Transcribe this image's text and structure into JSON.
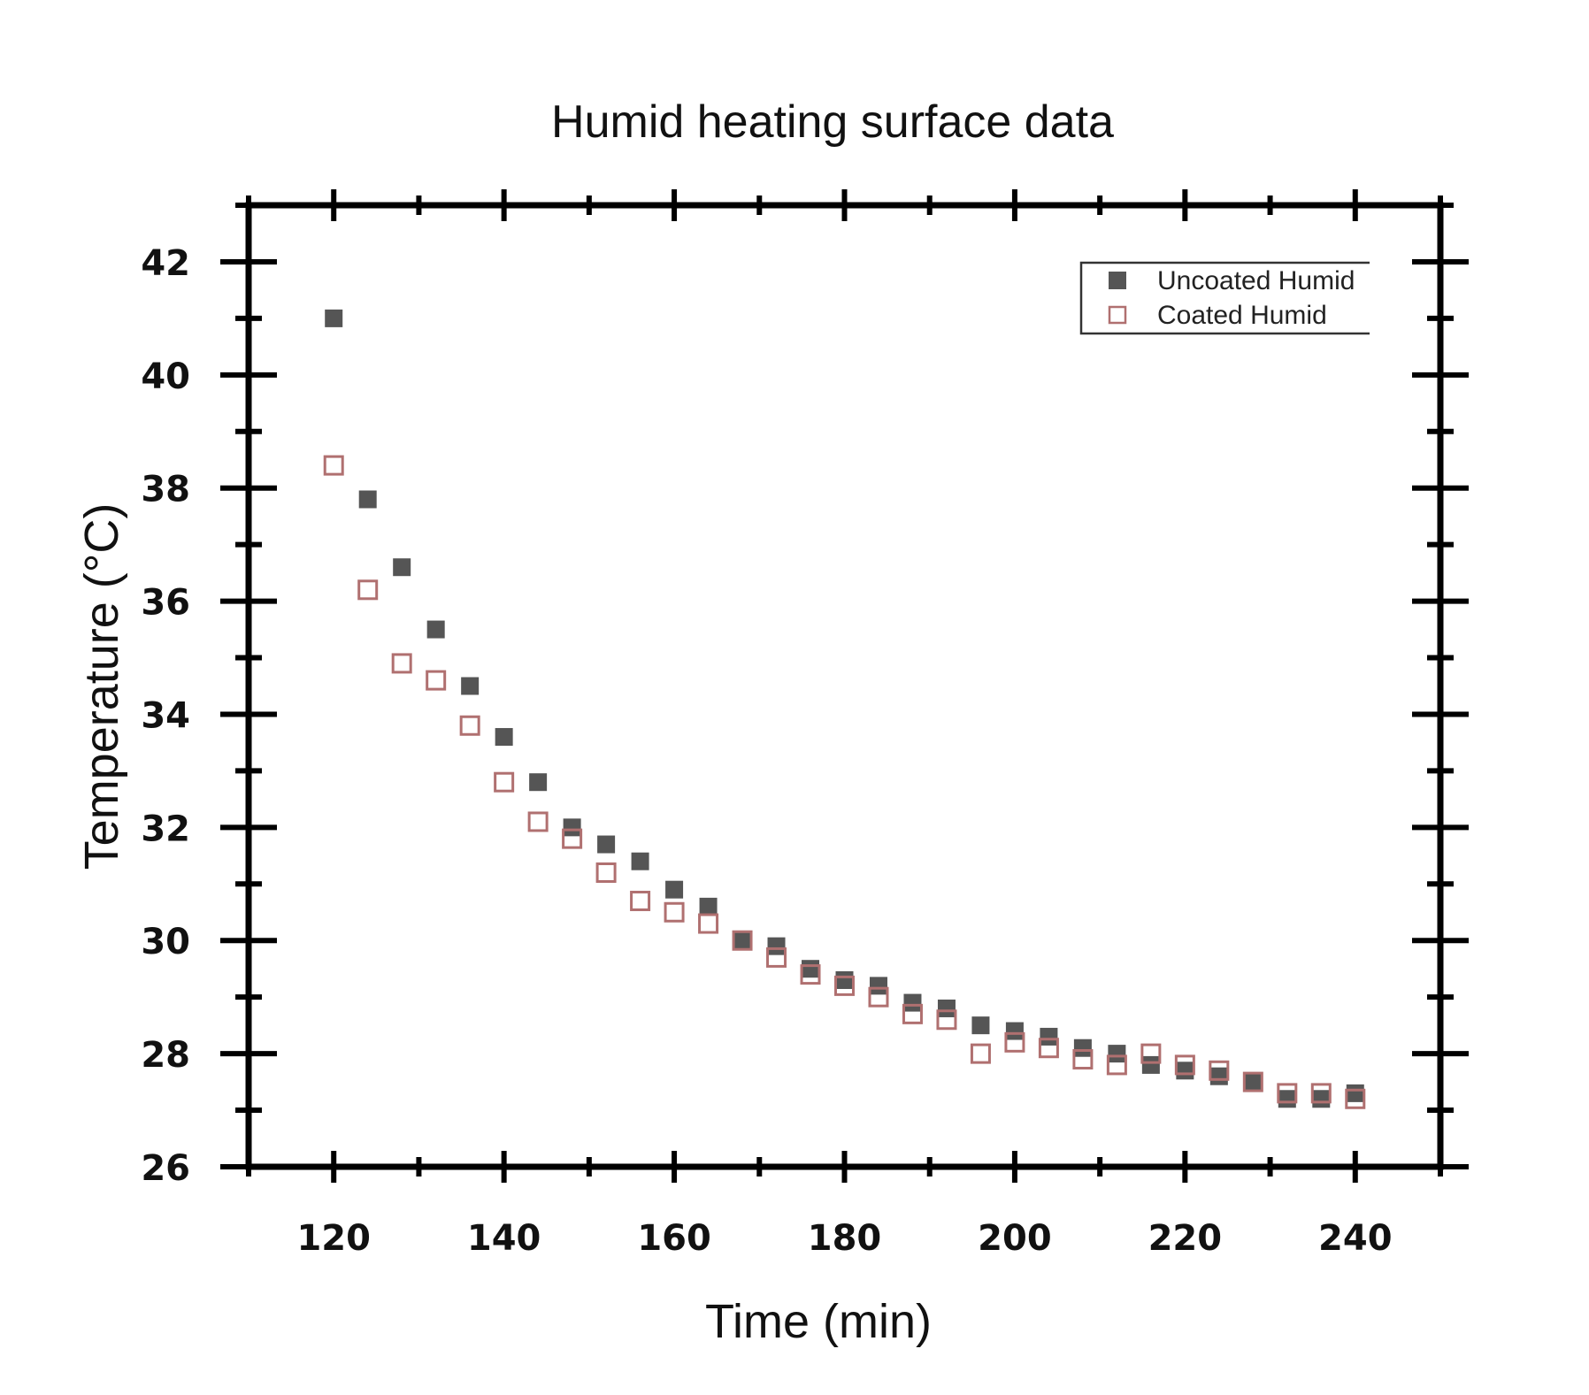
{
  "chart_data": {
    "type": "scatter",
    "title": "Humid heating surface data",
    "xlabel": "Time (min)",
    "ylabel": "Temperature (°C)",
    "xlim": [
      110,
      250
    ],
    "ylim": [
      26,
      43
    ],
    "xticks": [
      120,
      140,
      160,
      180,
      200,
      220,
      240
    ],
    "yticks": [
      26,
      28,
      30,
      32,
      34,
      36,
      38,
      40,
      42
    ],
    "legend_position": "top-right",
    "grid": false,
    "series": [
      {
        "name": "Uncoated Humid",
        "marker": "filled-square",
        "color": "#555555",
        "points": [
          [
            120,
            41.0
          ],
          [
            124,
            37.8
          ],
          [
            128,
            36.6
          ],
          [
            132,
            35.5
          ],
          [
            136,
            34.5
          ],
          [
            140,
            33.6
          ],
          [
            144,
            32.8
          ],
          [
            148,
            32.0
          ],
          [
            152,
            31.7
          ],
          [
            156,
            31.4
          ],
          [
            160,
            30.9
          ],
          [
            164,
            30.6
          ],
          [
            168,
            30.0
          ],
          [
            172,
            29.9
          ],
          [
            176,
            29.5
          ],
          [
            180,
            29.3
          ],
          [
            184,
            29.2
          ],
          [
            188,
            28.9
          ],
          [
            192,
            28.8
          ],
          [
            196,
            28.5
          ],
          [
            200,
            28.4
          ],
          [
            204,
            28.3
          ],
          [
            208,
            28.1
          ],
          [
            212,
            28.0
          ],
          [
            216,
            27.8
          ],
          [
            220,
            27.7
          ],
          [
            224,
            27.6
          ],
          [
            228,
            27.5
          ],
          [
            232,
            27.2
          ],
          [
            236,
            27.2
          ],
          [
            240,
            27.3
          ]
        ]
      },
      {
        "name": "Coated Humid",
        "marker": "open-square",
        "color": "#b07070",
        "points": [
          [
            120,
            38.4
          ],
          [
            124,
            36.2
          ],
          [
            128,
            34.9
          ],
          [
            132,
            34.6
          ],
          [
            136,
            33.8
          ],
          [
            140,
            32.8
          ],
          [
            144,
            32.1
          ],
          [
            148,
            31.8
          ],
          [
            152,
            31.2
          ],
          [
            156,
            30.7
          ],
          [
            160,
            30.5
          ],
          [
            164,
            30.3
          ],
          [
            168,
            30.0
          ],
          [
            172,
            29.7
          ],
          [
            176,
            29.4
          ],
          [
            180,
            29.2
          ],
          [
            184,
            29.0
          ],
          [
            188,
            28.7
          ],
          [
            192,
            28.6
          ],
          [
            196,
            28.0
          ],
          [
            200,
            28.2
          ],
          [
            204,
            28.1
          ],
          [
            208,
            27.9
          ],
          [
            212,
            27.8
          ],
          [
            216,
            28.0
          ],
          [
            220,
            27.8
          ],
          [
            224,
            27.7
          ],
          [
            228,
            27.5
          ],
          [
            232,
            27.3
          ],
          [
            236,
            27.3
          ],
          [
            240,
            27.2
          ]
        ]
      }
    ]
  }
}
